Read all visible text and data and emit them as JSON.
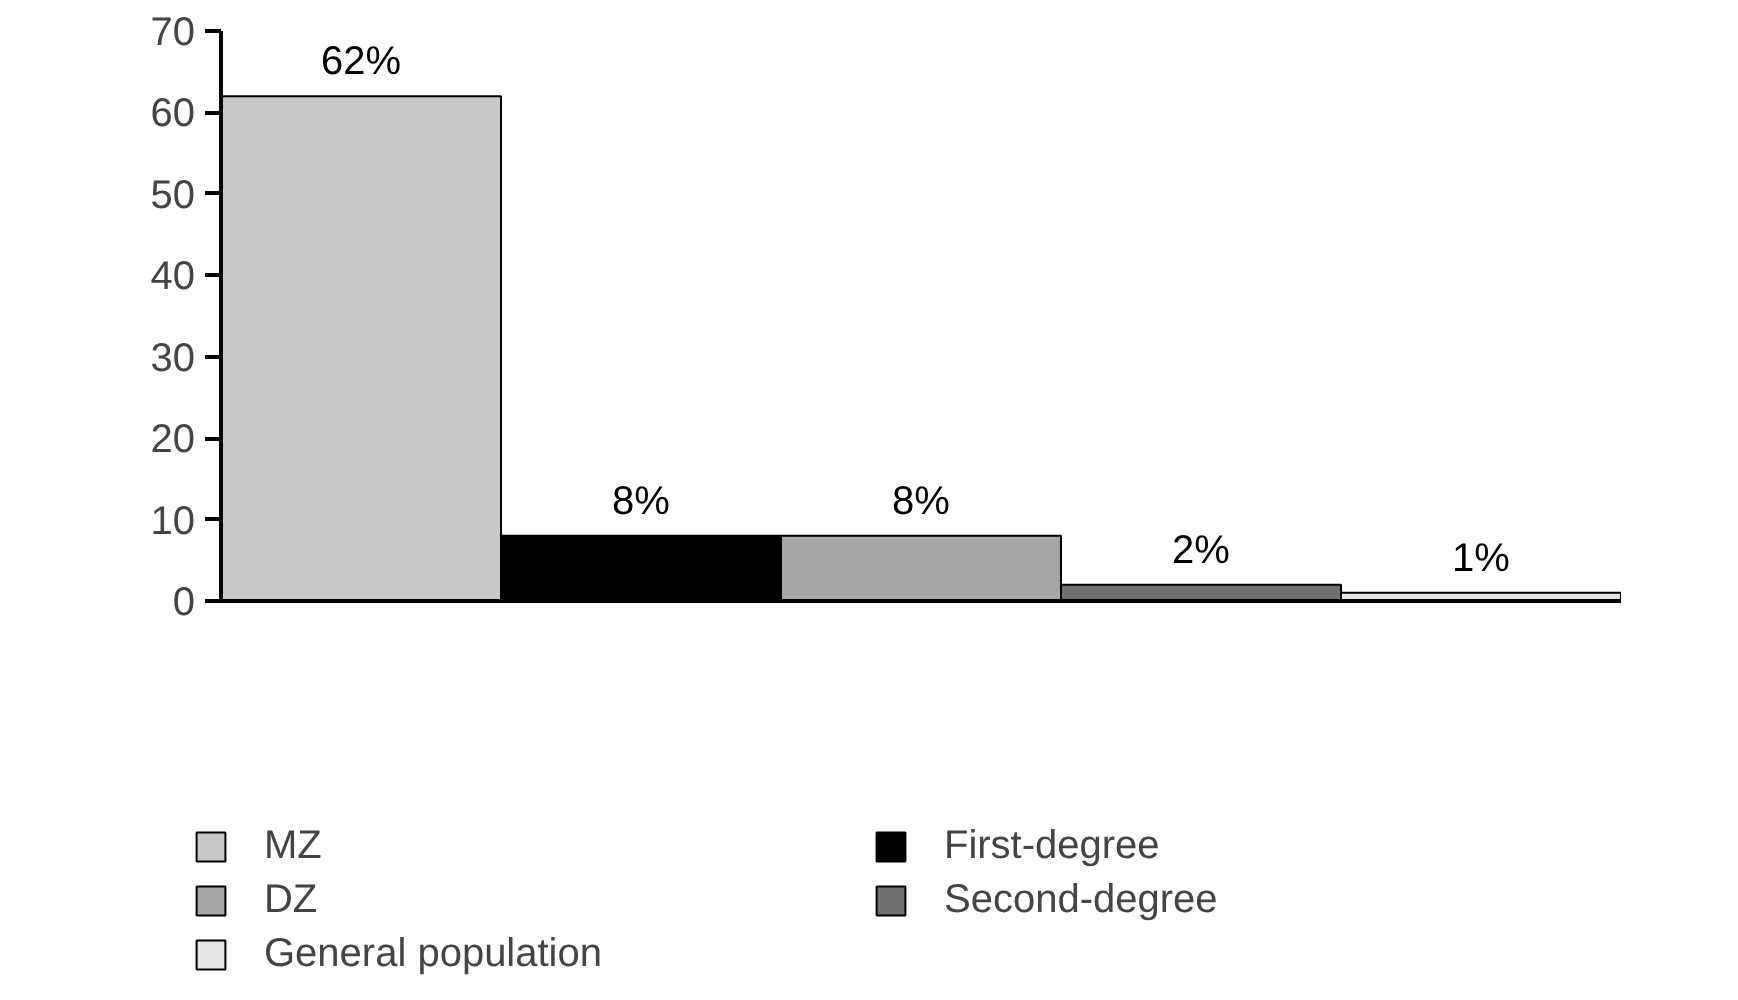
{
  "chart_data": {
    "type": "bar",
    "categories": [
      null,
      null,
      null,
      null,
      null
    ],
    "series": [
      {
        "name": "MZ",
        "color": "#c8c8c8",
        "values": [
          62,
          null,
          null,
          null,
          null
        ],
        "value_labels": [
          "62%",
          null,
          null,
          null,
          null
        ]
      },
      {
        "name": "First-degree",
        "color": "#000000",
        "values": [
          null,
          8,
          null,
          null,
          null
        ],
        "value_labels": [
          null,
          "8%",
          null,
          null,
          null
        ]
      },
      {
        "name": "DZ",
        "color": "#a6a6a6",
        "values": [
          null,
          null,
          8,
          null,
          null
        ],
        "value_labels": [
          null,
          null,
          "8%",
          null,
          null
        ]
      },
      {
        "name": "Second-degree",
        "color": "#707070",
        "values": [
          null,
          null,
          null,
          2,
          null
        ],
        "value_labels": [
          null,
          null,
          null,
          "2%",
          null
        ]
      },
      {
        "name": "General population",
        "color": "#e4e4e4",
        "values": [
          null,
          null,
          null,
          null,
          1
        ],
        "value_labels": [
          null,
          null,
          null,
          null,
          "1%"
        ]
      }
    ],
    "ylim": [
      0,
      70
    ],
    "yticks": [
      0,
      10,
      20,
      30,
      40,
      50,
      60,
      70
    ],
    "grid": false,
    "legend": "bottom"
  }
}
